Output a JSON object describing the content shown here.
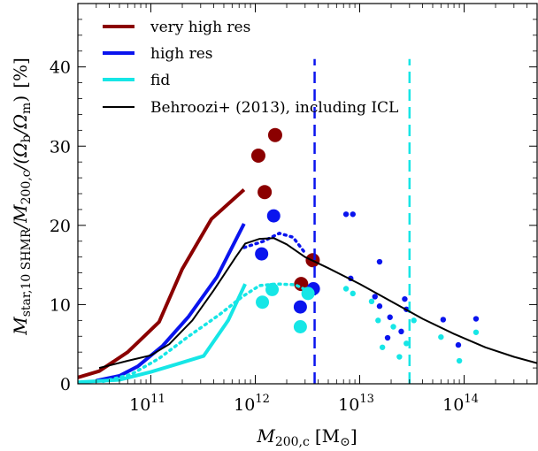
{
  "chart_data": {
    "type": "line",
    "xlabel_main": "M",
    "xlabel_sub": "200,c",
    "xlabel_unit": "[M",
    "xlabel_sun": "⊙",
    "xlabel_close": "]",
    "ylabel_main": "M",
    "ylabel_sub": "star,10 SHMR",
    "ylabel_mid": "/M",
    "ylabel_sub2": "200,c",
    "ylabel_frac_open": "/(Ω",
    "ylabel_sub3": "b",
    "ylabel_frac_mid": "/Ω",
    "ylabel_sub4": "m",
    "ylabel_frac_close": ")",
    "ylabel_unit": "[%]",
    "x_scale": "log",
    "xlim": [
      20000000000.0,
      500000000000000.0
    ],
    "ylim": [
      0,
      48
    ],
    "x_ticks": [
      {
        "value": 100000000000.0,
        "base": "10",
        "exp": "11"
      },
      {
        "value": 1000000000000.0,
        "base": "10",
        "exp": "12"
      },
      {
        "value": 10000000000000.0,
        "base": "10",
        "exp": "13"
      },
      {
        "value": 100000000000000.0,
        "base": "10",
        "exp": "14"
      }
    ],
    "y_ticks": [
      0,
      10,
      20,
      30,
      40
    ],
    "legend_position": "top-left",
    "legend": [
      {
        "label": "very high res",
        "color": "#8b0000",
        "style": "solid-thick"
      },
      {
        "label": "high res",
        "color": "#0a14ee",
        "style": "solid-thick"
      },
      {
        "label": "fid",
        "color": "#16e6e6",
        "style": "solid-thick"
      },
      {
        "label": "Behroozi+ (2013), including ICL",
        "color": "#000000",
        "style": "solid-thin"
      }
    ],
    "series": [
      {
        "name": "very high res",
        "color": "#8b0000",
        "line": [
          [
            20000000000.0,
            0.8
          ],
          [
            32000000000.0,
            1.6
          ],
          [
            60000000000.0,
            4.0
          ],
          [
            120000000000.0,
            7.8
          ],
          [
            200000000000.0,
            14.5
          ],
          [
            380000000000.0,
            20.8
          ],
          [
            780000000000.0,
            24.5
          ]
        ],
        "points": [
          [
            1070000000000.0,
            28.8
          ],
          [
            1230000000000.0,
            24.2
          ],
          [
            1550000000000.0,
            31.4
          ],
          [
            2750000000000.0,
            12.6
          ],
          [
            3550000000000.0,
            15.6
          ]
        ]
      },
      {
        "name": "high res",
        "color": "#0a14ee",
        "line": [
          [
            30000000000.0,
            0.4
          ],
          [
            50000000000.0,
            1.0
          ],
          [
            75000000000.0,
            2.2
          ],
          [
            130000000000.0,
            4.8
          ],
          [
            230000000000.0,
            8.5
          ],
          [
            430000000000.0,
            13.5
          ],
          [
            780000000000.0,
            20.2
          ]
        ],
        "dotted": [
          [
            780000000000.0,
            17.2
          ],
          [
            1200000000000.0,
            18.0
          ],
          [
            1700000000000.0,
            19.0
          ],
          [
            2300000000000.0,
            18.5
          ],
          [
            3000000000000.0,
            16.5
          ]
        ],
        "points_large": [
          [
            1150000000000.0,
            16.4
          ],
          [
            1500000000000.0,
            21.2
          ],
          [
            2700000000000.0,
            9.7
          ],
          [
            3600000000000.0,
            12.0
          ]
        ],
        "points_small": [
          [
            7400000000000.0,
            21.4
          ],
          [
            8600000000000.0,
            21.4
          ],
          [
            8200000000000.0,
            13.3
          ],
          [
            15500000000000.0,
            15.4
          ],
          [
            14000000000000.0,
            11.0
          ],
          [
            15500000000000.0,
            9.8
          ],
          [
            19500000000000.0,
            8.4
          ],
          [
            18500000000000.0,
            5.8
          ],
          [
            25000000000000.0,
            6.6
          ],
          [
            27000000000000.0,
            10.7
          ],
          [
            28000000000000.0,
            9.4
          ],
          [
            63000000000000.0,
            8.1
          ],
          [
            88000000000000.0,
            4.9
          ],
          [
            130000000000000.0,
            8.2
          ]
        ],
        "vline": 3700000000000.0
      },
      {
        "name": "fid",
        "color": "#16e6e6",
        "line": [
          [
            20000000000.0,
            0.2
          ],
          [
            50000000000.0,
            0.5
          ],
          [
            100000000000.0,
            1.5
          ],
          [
            180000000000.0,
            2.5
          ],
          [
            320000000000.0,
            3.5
          ],
          [
            550000000000.0,
            8.0
          ],
          [
            800000000000.0,
            12.6
          ]
        ],
        "dotted": [
          [
            35000000000.0,
            0.3
          ],
          [
            65000000000.0,
            1.2
          ],
          [
            120000000000.0,
            3.2
          ],
          [
            230000000000.0,
            6.0
          ],
          [
            450000000000.0,
            8.7
          ],
          [
            750000000000.0,
            11.0
          ],
          [
            1100000000000.0,
            12.4
          ],
          [
            1600000000000.0,
            12.6
          ],
          [
            2400000000000.0,
            12.5
          ],
          [
            3500000000000.0,
            11.5
          ]
        ],
        "points_large": [
          [
            1170000000000.0,
            10.3
          ],
          [
            1450000000000.0,
            11.9
          ],
          [
            2700000000000.0,
            7.2
          ],
          [
            3200000000000.0,
            11.4
          ]
        ],
        "points_small": [
          [
            7400000000000.0,
            12.0
          ],
          [
            8600000000000.0,
            11.4
          ],
          [
            13000000000000.0,
            10.4
          ],
          [
            15000000000000.0,
            8.0
          ],
          [
            16500000000000.0,
            4.6
          ],
          [
            21000000000000.0,
            7.2
          ],
          [
            24000000000000.0,
            3.4
          ],
          [
            28000000000000.0,
            5.1
          ],
          [
            33000000000000.0,
            8.0
          ],
          [
            60000000000000.0,
            5.9
          ],
          [
            90000000000000.0,
            2.9
          ],
          [
            130000000000000.0,
            6.5
          ]
        ],
        "vline": 30000000000000.0
      },
      {
        "name": "Behroozi+ (2013), including ICL",
        "color": "#000000",
        "line": [
          [
            32000000000.0,
            2.0
          ],
          [
            60000000000.0,
            2.9
          ],
          [
            100000000000.0,
            3.6
          ],
          [
            150000000000.0,
            5.0
          ],
          [
            250000000000.0,
            8.0
          ],
          [
            400000000000.0,
            11.8
          ],
          [
            650000000000.0,
            16.0
          ],
          [
            800000000000.0,
            17.7
          ],
          [
            1100000000000.0,
            18.3
          ],
          [
            1500000000000.0,
            18.4
          ],
          [
            2000000000000.0,
            17.6
          ],
          [
            3000000000000.0,
            16.0
          ],
          [
            5000000000000.0,
            14.6
          ],
          [
            10000000000000.0,
            12.6
          ],
          [
            20000000000000.0,
            10.4
          ],
          [
            40000000000000.0,
            8.2
          ],
          [
            80000000000000.0,
            6.3
          ],
          [
            160000000000000.0,
            4.6
          ],
          [
            300000000000000.0,
            3.4
          ],
          [
            500000000000000.0,
            2.6
          ]
        ]
      }
    ]
  }
}
